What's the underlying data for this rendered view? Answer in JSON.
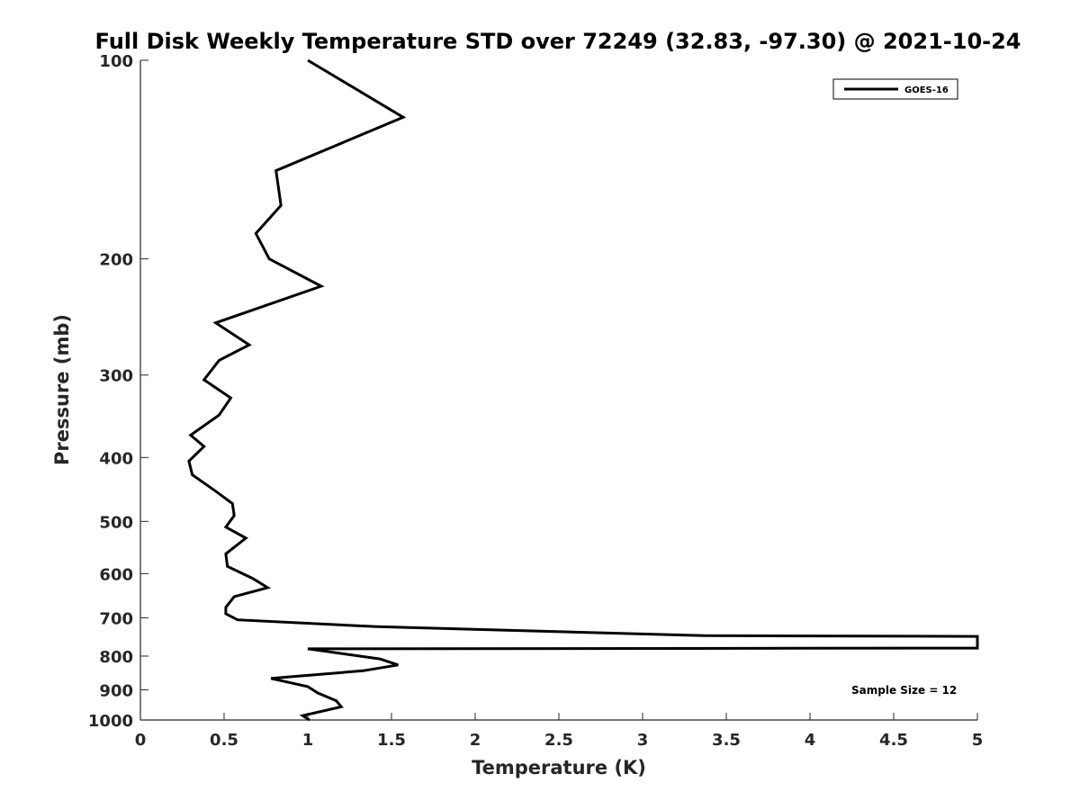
{
  "chart_data": {
    "type": "line",
    "title": "Full Disk Weekly Temperature STD over 72249 (32.83, -97.30) @ 2021-10-24",
    "xlabel": "Temperature (K)",
    "ylabel": "Pressure (mb)",
    "xlim": [
      0,
      5
    ],
    "ylim": [
      100,
      1000
    ],
    "yscale": "log",
    "y_reversed": true,
    "xticks": [
      0,
      0.5,
      1,
      1.5,
      2,
      2.5,
      3,
      3.5,
      4,
      4.5,
      5
    ],
    "xtick_labels": [
      "0",
      "0.5",
      "1",
      "1.5",
      "2",
      "2.5",
      "3",
      "3.5",
      "4",
      "4.5",
      "5"
    ],
    "yticks": [
      100,
      200,
      300,
      400,
      500,
      600,
      700,
      800,
      900,
      1000
    ],
    "ytick_labels": [
      "100",
      "200",
      "300",
      "400",
      "500",
      "600",
      "700",
      "800",
      "900",
      "1000"
    ],
    "grid": false,
    "legend_position": "top-right",
    "annotation": "Sample Size = 12",
    "line_color": "#000000",
    "series": [
      {
        "name": "GOES-16",
        "x": [
          1.0,
          1.57,
          0.81,
          0.84,
          0.69,
          0.77,
          1.08,
          0.45,
          0.65,
          0.47,
          0.38,
          0.54,
          0.47,
          0.3,
          0.38,
          0.29,
          0.31,
          0.45,
          0.55,
          0.56,
          0.51,
          0.63,
          0.51,
          0.52,
          0.67,
          0.76,
          0.56,
          0.51,
          0.51,
          0.58,
          1.41,
          3.37,
          5.0,
          5.0,
          1.0,
          1.43,
          1.54,
          1.33,
          0.78,
          1.0,
          1.06,
          1.17,
          1.2,
          0.97,
          1.01
        ],
        "y": [
          100,
          122,
          147,
          166,
          183,
          200,
          220,
          250,
          270,
          285,
          305,
          325,
          345,
          370,
          385,
          405,
          425,
          450,
          470,
          490,
          510,
          530,
          560,
          585,
          610,
          630,
          650,
          675,
          690,
          705,
          722,
          745,
          747,
          778,
          780,
          808,
          825,
          842,
          865,
          890,
          910,
          935,
          955,
          985,
          1000
        ]
      }
    ]
  }
}
